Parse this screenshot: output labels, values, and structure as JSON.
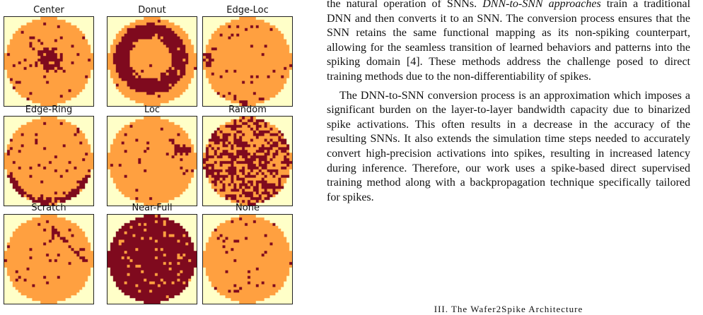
{
  "figure": {
    "colors": {
      "background": "#FFFFC8",
      "pass": "#FFA040",
      "fail": "#7F0A1E"
    },
    "wafers": [
      {
        "label": "Center",
        "pattern": "center"
      },
      {
        "label": "Donut",
        "pattern": "donut"
      },
      {
        "label": "Edge-Loc",
        "pattern": "edge-loc"
      },
      {
        "label": "Edge-Ring",
        "pattern": "edge-ring"
      },
      {
        "label": "Loc",
        "pattern": "loc"
      },
      {
        "label": "Random",
        "pattern": "random"
      },
      {
        "label": "Scratch",
        "pattern": "scratch"
      },
      {
        "label": "Near-Full",
        "pattern": "near-full"
      },
      {
        "label": "None",
        "pattern": "none"
      }
    ]
  },
  "text": {
    "para1_before": "the natural operation of SNNs. ",
    "para1_emph": "DNN-to-SNN approaches",
    "para1_after": " train a traditional DNN and then converts it to an SNN. The conversion process ensures that the SNN retains the same functional mapping as its non-spiking counterpart, allowing for the seamless transition of learned behaviors and patterns into the spiking domain [4]. These methods address the challenge posed to direct training methods due to the non-differentiability of spikes.",
    "para2": "The DNN-to-SNN conversion process is an approximation which imposes a significant burden on the layer-to-layer bandwidth capacity due to binarized spike activations. This often results in a decrease in the accuracy of the resulting SNNs. It also extends the simulation time steps needed to accurately convert high-precision activations into spikes, resulting in increased latency during inference. Therefore, our work uses a spike-based direct supervised training method along with a backpropagation technique specifically tailored for spikes.",
    "section_heading": "III. The Wafer2Spike Architecture"
  }
}
